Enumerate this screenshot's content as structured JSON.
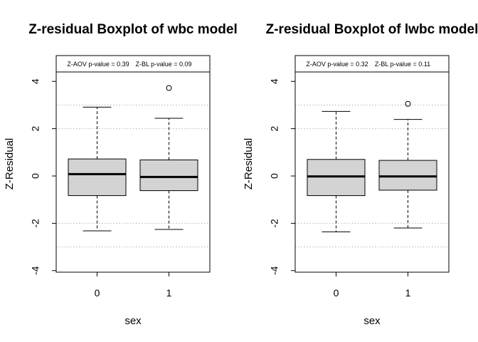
{
  "chart_data": [
    {
      "type": "boxplot",
      "title": "Z-residual Boxplot of wbc model",
      "xlabel": "sex",
      "ylabel": "Z-Residual",
      "categories": [
        "0",
        "1"
      ],
      "ylim": [
        -4,
        4
      ],
      "yticks": [
        "-4",
        "-2",
        "0",
        "2",
        "4"
      ],
      "reference_lines": [
        -3,
        -2,
        2,
        3
      ],
      "grid": "dotted reference lines at ±2 and ±3",
      "box_color": "#d3d3d3",
      "boxes": [
        {
          "category": "0",
          "whisker_low": -2.32,
          "q1": -0.83,
          "median": 0.08,
          "q3": 0.72,
          "whisker_high": 2.91,
          "outliers": []
        },
        {
          "category": "1",
          "whisker_low": -2.26,
          "q1": -0.62,
          "median": -0.04,
          "q3": 0.68,
          "whisker_high": 2.44,
          "outliers": [
            3.72
          ]
        }
      ],
      "annotations": [
        "Z-AOV p-value = 0.39",
        "Z-BL p-value = 0.09"
      ]
    },
    {
      "type": "boxplot",
      "title": "Z-residual Boxplot of lwbc model",
      "xlabel": "sex",
      "ylabel": "Z-Residual",
      "categories": [
        "0",
        "1"
      ],
      "ylim": [
        -4,
        4
      ],
      "yticks": [
        "-4",
        "-2",
        "0",
        "2",
        "4"
      ],
      "reference_lines": [
        -3,
        -2,
        2,
        3
      ],
      "grid": "dotted reference lines at ±2 and ±3",
      "box_color": "#d3d3d3",
      "boxes": [
        {
          "category": "0",
          "whisker_low": -2.36,
          "q1": -0.83,
          "median": -0.02,
          "q3": 0.7,
          "whisker_high": 2.73,
          "outliers": []
        },
        {
          "category": "1",
          "whisker_low": -2.2,
          "q1": -0.6,
          "median": -0.02,
          "q3": 0.66,
          "whisker_high": 2.39,
          "outliers": [
            3.05
          ]
        }
      ],
      "annotations": [
        "Z-AOV p-value = 0.32",
        "Z-BL p-value = 0.11"
      ]
    }
  ]
}
